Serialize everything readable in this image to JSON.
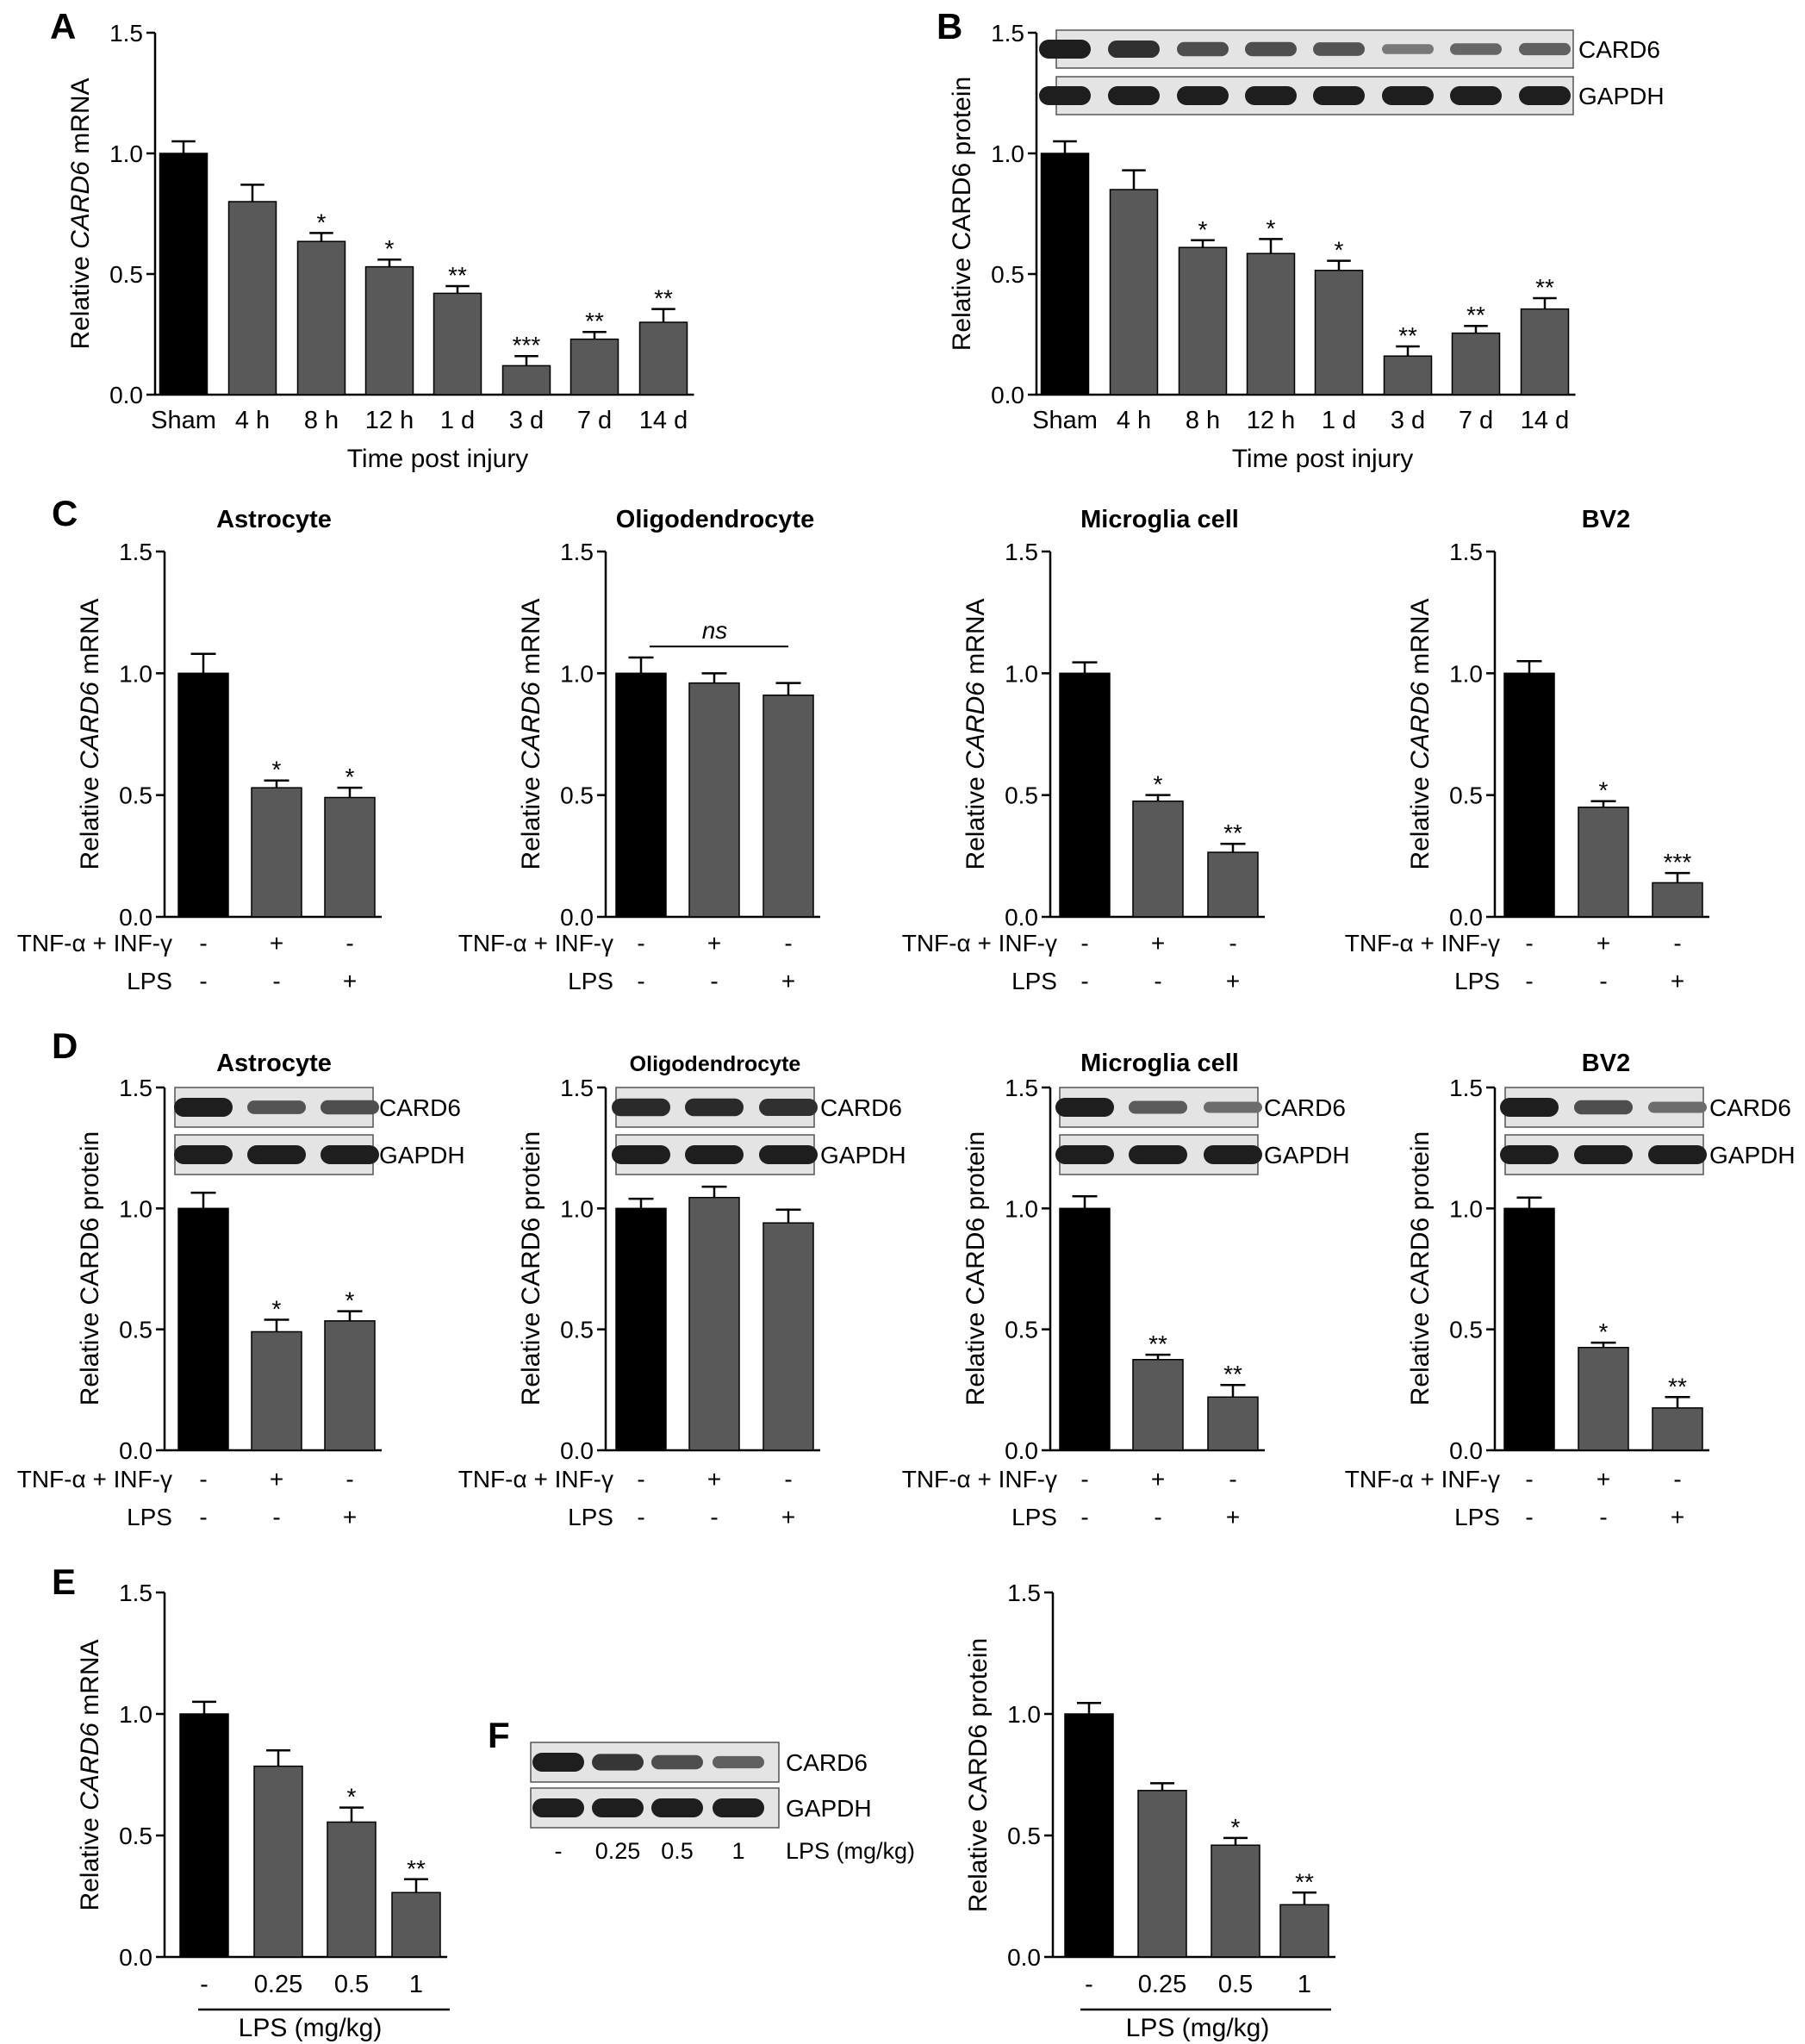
{
  "panel_letters": [
    "A",
    "B",
    "C",
    "D",
    "E",
    "F"
  ],
  "lane_labels": {
    "card6": "CARD6",
    "gapdh": "GAPDH"
  },
  "chart_data": [
    {
      "id": "A",
      "type": "bar",
      "categories": [
        "Sham",
        "4 h",
        "8 h",
        "12 h",
        "1 d",
        "3 d",
        "7 d",
        "14 d"
      ],
      "values": [
        1.0,
        0.8,
        0.635,
        0.53,
        0.42,
        0.12,
        0.23,
        0.3
      ],
      "errors": [
        0.05,
        0.07,
        0.035,
        0.03,
        0.03,
        0.04,
        0.03,
        0.055
      ],
      "significance": [
        "",
        "",
        "*",
        "*",
        "**",
        "***",
        "**",
        "**"
      ],
      "colors": [
        "#000000",
        "#595959",
        "#595959",
        "#595959",
        "#595959",
        "#595959",
        "#595959",
        "#595959"
      ],
      "ylabel_pre": "Relative ",
      "ylabel_italic": "CARD6",
      "ylabel_post": " mRNA",
      "xlabel": "Time post injury",
      "ylim": [
        0,
        1.5
      ],
      "yticks": [
        "0.0",
        "0.5",
        "1.0",
        "1.5"
      ]
    },
    {
      "id": "B",
      "type": "bar",
      "categories": [
        "Sham",
        "4 h",
        "8 h",
        "12 h",
        "1 d",
        "3 d",
        "7 d",
        "14 d"
      ],
      "values": [
        1.0,
        0.85,
        0.61,
        0.585,
        0.515,
        0.16,
        0.255,
        0.355
      ],
      "errors": [
        0.05,
        0.08,
        0.03,
        0.06,
        0.04,
        0.04,
        0.03,
        0.045
      ],
      "significance": [
        "",
        "",
        "*",
        "*",
        "*",
        "**",
        "**",
        "**"
      ],
      "colors": [
        "#000000",
        "#595959",
        "#595959",
        "#595959",
        "#595959",
        "#595959",
        "#595959",
        "#595959"
      ],
      "ylabel_pre": "Relative CARD6 protein",
      "ylabel_italic": "",
      "ylabel_post": "",
      "xlabel": "Time post injury",
      "ylim": [
        0,
        1.5
      ],
      "yticks": [
        "0.0",
        "0.5",
        "1.0",
        "1.5"
      ],
      "blot": {
        "card6": [
          1.0,
          0.85,
          0.6,
          0.6,
          0.55,
          0.25,
          0.4,
          0.45
        ],
        "gapdh": [
          1,
          1,
          1,
          1,
          1,
          1,
          1,
          1
        ]
      }
    },
    {
      "id": "C1",
      "type": "bar",
      "title": "Astrocyte",
      "values": [
        1.0,
        0.53,
        0.49
      ],
      "errors": [
        0.08,
        0.03,
        0.04
      ],
      "significance": [
        "",
        "*",
        "*"
      ],
      "colors": [
        "#000000",
        "#595959",
        "#595959"
      ],
      "ylabel_pre": "Relative ",
      "ylabel_italic": "CARD6",
      "ylabel_post": " mRNA",
      "ylim": [
        0,
        1.5
      ],
      "yticks": [
        "0.0",
        "0.5",
        "1.0",
        "1.5"
      ],
      "rows": [
        {
          "label": "TNF-α + INF-γ",
          "signs": [
            "-",
            "+",
            "-"
          ]
        },
        {
          "label": "LPS",
          "signs": [
            "-",
            "-",
            "+"
          ]
        }
      ]
    },
    {
      "id": "C2",
      "type": "bar",
      "title": "Oligodendrocyte",
      "values": [
        1.0,
        0.96,
        0.91
      ],
      "errors": [
        0.065,
        0.04,
        0.05
      ],
      "significance": [
        "",
        "",
        ""
      ],
      "bracket": "ns",
      "colors": [
        "#000000",
        "#595959",
        "#595959"
      ],
      "ylabel_pre": "Relative ",
      "ylabel_italic": "CARD6",
      "ylabel_post": " mRNA",
      "ylim": [
        0,
        1.5
      ],
      "yticks": [
        "0.0",
        "0.5",
        "1.0",
        "1.5"
      ],
      "rows": [
        {
          "label": "TNF-α + INF-γ",
          "signs": [
            "-",
            "+",
            "-"
          ]
        },
        {
          "label": "LPS",
          "signs": [
            "-",
            "-",
            "+"
          ]
        }
      ]
    },
    {
      "id": "C3",
      "type": "bar",
      "title": "Microglia cell",
      "values": [
        1.0,
        0.475,
        0.265
      ],
      "errors": [
        0.045,
        0.025,
        0.035
      ],
      "significance": [
        "",
        "*",
        "**"
      ],
      "colors": [
        "#000000",
        "#595959",
        "#595959"
      ],
      "ylabel_pre": "Relative ",
      "ylabel_italic": "CARD6",
      "ylabel_post": " mRNA",
      "ylim": [
        0,
        1.5
      ],
      "yticks": [
        "0.0",
        "0.5",
        "1.0",
        "1.5"
      ],
      "rows": [
        {
          "label": "TNF-α + INF-γ",
          "signs": [
            "-",
            "+",
            "-"
          ]
        },
        {
          "label": "LPS",
          "signs": [
            "-",
            "-",
            "+"
          ]
        }
      ]
    },
    {
      "id": "C4",
      "type": "bar",
      "title": "BV2",
      "values": [
        1.0,
        0.45,
        0.14
      ],
      "errors": [
        0.05,
        0.025,
        0.04
      ],
      "significance": [
        "",
        "*",
        "***"
      ],
      "colors": [
        "#000000",
        "#595959",
        "#595959"
      ],
      "ylabel_pre": "Relative ",
      "ylabel_italic": "CARD6",
      "ylabel_post": " mRNA",
      "ylim": [
        0,
        1.5
      ],
      "yticks": [
        "0.0",
        "0.5",
        "1.0",
        "1.5"
      ],
      "rows": [
        {
          "label": "TNF-α + INF-γ",
          "signs": [
            "-",
            "+",
            "-"
          ]
        },
        {
          "label": "LPS",
          "signs": [
            "-",
            "-",
            "+"
          ]
        }
      ]
    },
    {
      "id": "D1",
      "type": "bar",
      "title": "Astrocyte",
      "values": [
        1.0,
        0.49,
        0.535
      ],
      "errors": [
        0.065,
        0.05,
        0.04
      ],
      "significance": [
        "",
        "*",
        "*"
      ],
      "colors": [
        "#000000",
        "#595959",
        "#595959"
      ],
      "ylabel_pre": "Relative CARD6 protein",
      "ylabel_italic": "",
      "ylabel_post": "",
      "ylim": [
        0,
        1.5
      ],
      "yticks": [
        "0.0",
        "0.5",
        "1.0",
        "1.5"
      ],
      "rows": [
        {
          "label": "TNF-α + INF-γ",
          "signs": [
            "-",
            "+",
            "-"
          ]
        },
        {
          "label": "LPS",
          "signs": [
            "-",
            "-",
            "+"
          ]
        }
      ],
      "blot": {
        "card6": [
          1.0,
          0.55,
          0.6
        ],
        "gapdh": [
          1,
          1,
          1
        ]
      }
    },
    {
      "id": "D2",
      "type": "bar",
      "title": "Oligodendrocyte",
      "values": [
        1.0,
        1.045,
        0.94
      ],
      "errors": [
        0.04,
        0.045,
        0.055
      ],
      "significance": [
        "",
        "",
        ""
      ],
      "colors": [
        "#000000",
        "#595959",
        "#595959"
      ],
      "ylabel_pre": "Relative CARD6 protein",
      "ylabel_italic": "",
      "ylabel_post": "",
      "ylim": [
        0,
        1.5
      ],
      "yticks": [
        "0.0",
        "0.5",
        "1.0",
        "1.5"
      ],
      "rows": [
        {
          "label": "TNF-α + INF-γ",
          "signs": [
            "-",
            "+",
            "-"
          ]
        },
        {
          "label": "LPS",
          "signs": [
            "-",
            "-",
            "+"
          ]
        }
      ],
      "blot": {
        "card6": [
          0.9,
          0.9,
          0.85
        ],
        "gapdh": [
          1,
          1,
          1
        ]
      }
    },
    {
      "id": "D3",
      "type": "bar",
      "title": "Microglia cell",
      "values": [
        1.0,
        0.375,
        0.22
      ],
      "errors": [
        0.05,
        0.02,
        0.05
      ],
      "significance": [
        "",
        "**",
        "**"
      ],
      "colors": [
        "#000000",
        "#595959",
        "#595959"
      ],
      "ylabel_pre": "Relative CARD6 protein",
      "ylabel_italic": "",
      "ylabel_post": "",
      "ylim": [
        0,
        1.5
      ],
      "yticks": [
        "0.0",
        "0.5",
        "1.0",
        "1.5"
      ],
      "rows": [
        {
          "label": "TNF-α + INF-γ",
          "signs": [
            "-",
            "+",
            "-"
          ]
        },
        {
          "label": "LPS",
          "signs": [
            "-",
            "-",
            "+"
          ]
        }
      ],
      "blot": {
        "card6": [
          1.0,
          0.5,
          0.35
        ],
        "gapdh": [
          1,
          1,
          1
        ]
      }
    },
    {
      "id": "D4",
      "type": "bar",
      "title": "BV2",
      "values": [
        1.0,
        0.425,
        0.175
      ],
      "errors": [
        0.045,
        0.02,
        0.045
      ],
      "significance": [
        "",
        "*",
        "**"
      ],
      "colors": [
        "#000000",
        "#595959",
        "#595959"
      ],
      "ylabel_pre": "Relative CARD6 protein",
      "ylabel_italic": "",
      "ylabel_post": "",
      "ylim": [
        0,
        1.5
      ],
      "yticks": [
        "0.0",
        "0.5",
        "1.0",
        "1.5"
      ],
      "rows": [
        {
          "label": "TNF-α + INF-γ",
          "signs": [
            "-",
            "+",
            "-"
          ]
        },
        {
          "label": "LPS",
          "signs": [
            "-",
            "-",
            "+"
          ]
        }
      ],
      "blot": {
        "card6": [
          1.0,
          0.6,
          0.35
        ],
        "gapdh": [
          1,
          1,
          1
        ]
      }
    },
    {
      "id": "E",
      "type": "bar",
      "categories": [
        "-",
        "0.25",
        "0.5",
        "1"
      ],
      "values": [
        1.0,
        0.785,
        0.555,
        0.265
      ],
      "errors": [
        0.05,
        0.065,
        0.06,
        0.055
      ],
      "significance": [
        "",
        "",
        "*",
        "**"
      ],
      "colors": [
        "#000000",
        "#595959",
        "#595959",
        "#595959"
      ],
      "ylabel_pre": "Relative ",
      "ylabel_italic": "CARD6",
      "ylabel_post": " mRNA",
      "xlabel": "LPS (mg/kg)",
      "ylim": [
        0,
        1.5
      ],
      "yticks": [
        "0.0",
        "0.5",
        "1.0",
        "1.5"
      ]
    },
    {
      "id": "F",
      "type": "bar",
      "categories": [
        "-",
        "0.25",
        "0.5",
        "1"
      ],
      "values": [
        1.0,
        0.685,
        0.46,
        0.215
      ],
      "errors": [
        0.045,
        0.03,
        0.03,
        0.05
      ],
      "significance": [
        "",
        "",
        "*",
        "**"
      ],
      "colors": [
        "#000000",
        "#595959",
        "#595959",
        "#595959"
      ],
      "ylabel_pre": "Relative CARD6 protein",
      "ylabel_italic": "",
      "ylabel_post": "",
      "xlabel": "LPS (mg/kg)",
      "ylim": [
        0,
        1.5
      ],
      "yticks": [
        "0.0",
        "0.5",
        "1.0",
        "1.5"
      ],
      "blot": {
        "categories": [
          "-",
          "0.25",
          "0.5",
          "1"
        ],
        "label": "LPS (mg/kg)",
        "card6": [
          1.0,
          0.8,
          0.6,
          0.45
        ],
        "gapdh": [
          1,
          1,
          1,
          1
        ]
      }
    }
  ]
}
